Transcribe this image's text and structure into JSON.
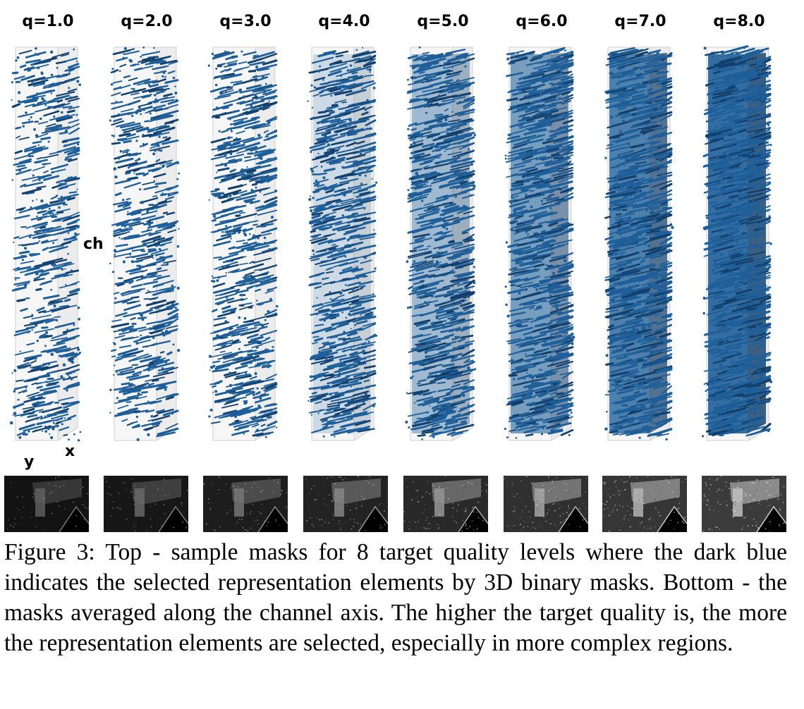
{
  "figure": {
    "quality_labels": [
      "q=1.0",
      "q=2.0",
      "q=3.0",
      "q=4.0",
      "q=5.0",
      "q=6.0",
      "q=7.0",
      "q=8.0"
    ],
    "axis_labels": {
      "ch": "ch",
      "x": "x",
      "y": "y"
    },
    "density": [
      0.3,
      0.36,
      0.45,
      0.55,
      0.66,
      0.76,
      0.86,
      0.93
    ],
    "colors": {
      "mask_blue": "#1f5f99",
      "mask_dark": "#123f6b",
      "box_edge": "#cfcfcf",
      "box_face": "#ececec"
    }
  },
  "caption": {
    "text": "Figure 3: Top - sample masks for 8 target quality levels where the dark blue indicates the selected representation elements by 3D binary masks. Bottom - the masks averaged along the channel axis. The higher the target quality is, the more the representation elements are selected, especially in more complex regions."
  }
}
